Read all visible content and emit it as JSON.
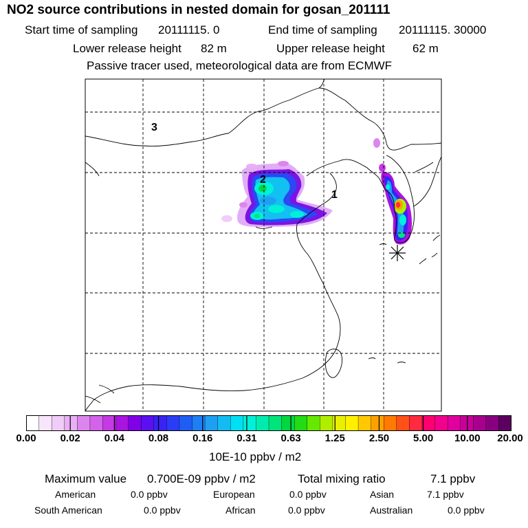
{
  "header": {
    "title": "NO2 source contributions in nested domain for gosan_201111",
    "start_label": "Start time of sampling",
    "start_value": "20111115.     0",
    "end_label": "End time of sampling",
    "end_value": "20111115. 30000",
    "lower_label": "Lower release height",
    "lower_value": "82 m",
    "upper_label": "Upper release height",
    "upper_value": "62 m",
    "note": "Passive tracer used, meteorological data are from ECMWF"
  },
  "map": {
    "region_labels": [
      "1",
      "2",
      "3"
    ],
    "receptor_marker": "asterisk-icon"
  },
  "colorbar": {
    "ticks": [
      "0.00",
      "0.02",
      "0.04",
      "0.08",
      "0.16",
      "0.31",
      "0.63",
      "1.25",
      "2.50",
      "5.00",
      "10.00",
      "20.00"
    ],
    "unit": "10E-10 ppbv / m2",
    "colors": [
      "#ffffff",
      "#f7e6fb",
      "#f0cdf8",
      "#e8b0f4",
      "#dd85ee",
      "#d363ea",
      "#c43ae4",
      "#a914de",
      "#8000e8",
      "#5a10f0",
      "#3a22f4",
      "#2b3cf6",
      "#1f5ef4",
      "#1e7ef4",
      "#1ea0f2",
      "#12bcf2",
      "#00e0f4",
      "#00f0d8",
      "#00ecae",
      "#00e47c",
      "#00d840",
      "#22dc16",
      "#66e800",
      "#b0ee00",
      "#e8f000",
      "#fff000",
      "#ffc800",
      "#ffa000",
      "#ff7a00",
      "#ff5018",
      "#ff2a40",
      "#ff0070",
      "#f2008e",
      "#e0009e",
      "#c8009a",
      "#a8008e",
      "#880080",
      "#5c0060"
    ]
  },
  "summary": {
    "max_label": "Maximum value",
    "max_value": "0.700E-09 ppbv / m2",
    "total_label": "Total mixing ratio",
    "total_value": "7.1 ppbv",
    "regions": [
      {
        "name": "American",
        "value": "0.0 ppbv"
      },
      {
        "name": "European",
        "value": "0.0 ppbv"
      },
      {
        "name": "Asian",
        "value": "7.1 ppbv"
      },
      {
        "name": "South American",
        "value": "0.0 ppbv"
      },
      {
        "name": "African",
        "value": "0.0 ppbv"
      },
      {
        "name": "Australian",
        "value": "0.0 ppbv"
      }
    ]
  }
}
